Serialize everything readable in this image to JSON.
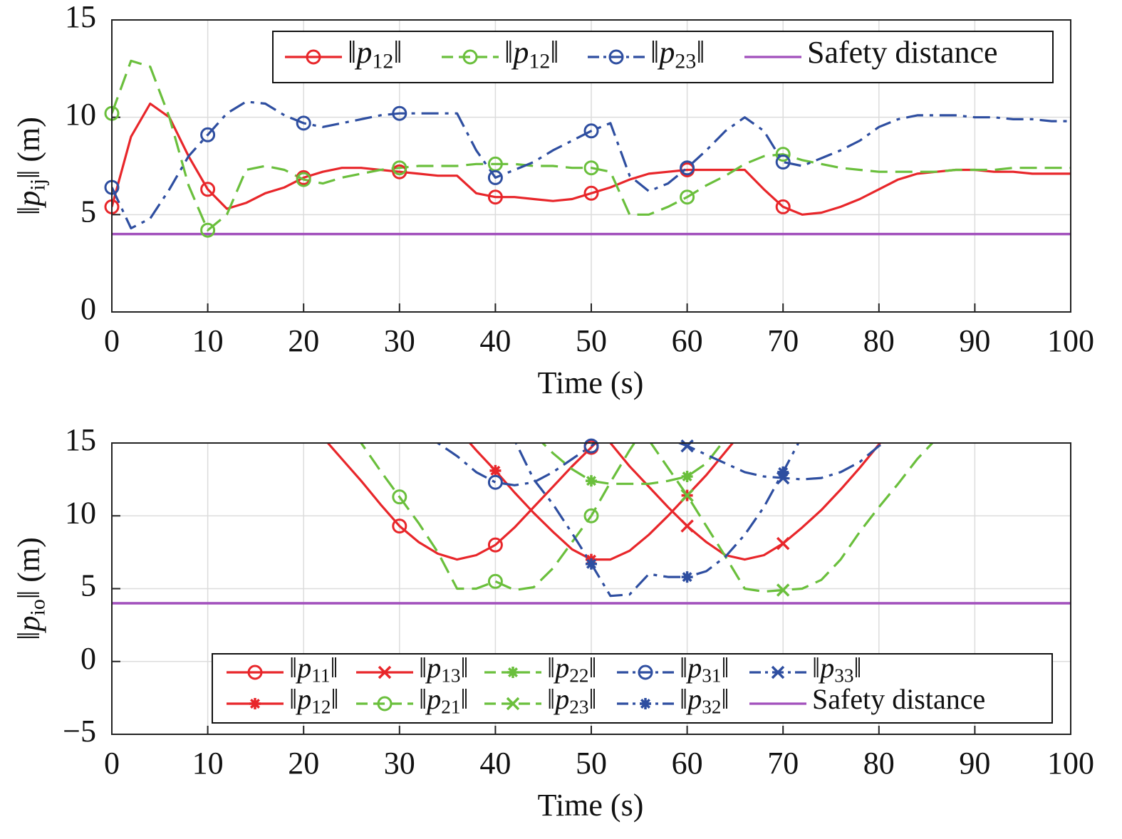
{
  "chart_data": [
    {
      "type": "line",
      "xlabel": "Time (s)",
      "ylabel": "‖pij‖ (m)",
      "x": [
        0,
        2,
        4,
        6,
        8,
        10,
        12,
        14,
        16,
        18,
        20,
        22,
        24,
        26,
        28,
        30,
        32,
        34,
        36,
        38,
        40,
        42,
        44,
        46,
        48,
        50,
        52,
        54,
        56,
        58,
        60,
        62,
        64,
        66,
        68,
        70,
        72,
        74,
        76,
        78,
        80,
        82,
        84,
        86,
        88,
        90,
        92,
        94,
        96,
        98,
        100
      ],
      "xlim": [
        0,
        100
      ],
      "xticks": [
        0,
        10,
        20,
        30,
        40,
        50,
        60,
        70,
        80,
        90,
        100
      ],
      "ylim": [
        0,
        15
      ],
      "yticks": [
        0,
        5,
        10,
        15
      ],
      "grid": true,
      "legend": "upper right",
      "markers_at": [
        0,
        10,
        20,
        30,
        40,
        50,
        60,
        70
      ],
      "series": [
        {
          "name": "‖p12‖",
          "color": "#e8262a",
          "dash": "solid",
          "marker": "o",
          "values": [
            5.4,
            9.0,
            10.7,
            10.0,
            8.0,
            6.3,
            5.3,
            5.6,
            6.1,
            6.4,
            6.9,
            7.2,
            7.4,
            7.4,
            7.3,
            7.2,
            7.1,
            7.0,
            7.0,
            6.1,
            5.9,
            5.9,
            5.8,
            5.7,
            5.8,
            6.1,
            6.4,
            6.8,
            7.1,
            7.2,
            7.3,
            7.3,
            7.3,
            7.3,
            6.3,
            5.4,
            5.0,
            5.1,
            5.4,
            5.8,
            6.3,
            6.8,
            7.1,
            7.2,
            7.3,
            7.3,
            7.2,
            7.2,
            7.1,
            7.1,
            7.1
          ]
        },
        {
          "name": "‖p12‖",
          "color": "#6abf3c",
          "dash": "dash",
          "marker": "o",
          "values": [
            10.2,
            12.9,
            12.6,
            10.0,
            6.5,
            4.2,
            5.0,
            7.3,
            7.5,
            7.3,
            6.8,
            6.6,
            6.9,
            7.1,
            7.3,
            7.4,
            7.5,
            7.5,
            7.5,
            7.6,
            7.6,
            7.6,
            7.5,
            7.5,
            7.4,
            7.4,
            7.2,
            5.0,
            5.0,
            5.4,
            5.9,
            6.5,
            7.0,
            7.6,
            8.0,
            8.1,
            7.8,
            7.6,
            7.4,
            7.3,
            7.2,
            7.2,
            7.2,
            7.2,
            7.3,
            7.3,
            7.3,
            7.4,
            7.4,
            7.4,
            7.4
          ]
        },
        {
          "name": "‖p23‖",
          "color": "#2e4ea0",
          "dash": "dashdot",
          "marker": "o",
          "values": [
            6.4,
            4.3,
            4.8,
            6.3,
            8.0,
            9.1,
            10.2,
            10.8,
            10.7,
            10.1,
            9.7,
            9.5,
            9.7,
            9.9,
            10.1,
            10.2,
            10.2,
            10.2,
            10.2,
            8.3,
            6.9,
            7.3,
            7.7,
            8.3,
            8.8,
            9.3,
            9.7,
            7.0,
            6.2,
            6.6,
            7.4,
            8.3,
            9.3,
            10.0,
            9.3,
            7.7,
            7.5,
            7.9,
            8.3,
            8.8,
            9.5,
            9.9,
            10.1,
            10.1,
            10.1,
            10.0,
            10.0,
            9.9,
            9.9,
            9.8,
            9.8
          ]
        }
      ],
      "hline": {
        "name": "Safety distance",
        "value": 4,
        "color": "#a14fbc"
      }
    },
    {
      "type": "line",
      "xlabel": "Time (s)",
      "ylabel": "‖pio‖ (m)",
      "x": [
        20,
        22,
        24,
        26,
        28,
        30,
        32,
        34,
        36,
        38,
        40,
        42,
        44,
        46,
        48,
        50,
        52,
        54,
        56,
        58,
        60,
        62,
        64,
        66,
        68,
        70,
        72,
        74,
        76,
        78,
        80,
        82,
        84,
        86,
        88,
        90
      ],
      "xlim": [
        0,
        100
      ],
      "xticks": [
        0,
        10,
        20,
        30,
        40,
        50,
        60,
        70,
        80,
        90,
        100
      ],
      "ylim": [
        -5,
        15
      ],
      "yticks": [
        {
          "value": -5,
          "label": "−5"
        },
        0,
        5,
        10,
        15
      ],
      "grid": true,
      "legend": "lower center",
      "markers_at": [
        30,
        40,
        50,
        60,
        70
      ],
      "series": [
        {
          "name": "‖p11‖",
          "color": "#e8262a",
          "dash": "solid",
          "marker": "o",
          "values": [
            17.0,
            15.4,
            13.9,
            12.4,
            10.8,
            9.3,
            8.2,
            7.4,
            7.0,
            7.3,
            8.0,
            9.2,
            10.6,
            12.0,
            13.4,
            14.7,
            16.0,
            null,
            null,
            null,
            null,
            null,
            null,
            null,
            null,
            null,
            null,
            null,
            null,
            null,
            null,
            null,
            null,
            null,
            null,
            null
          ]
        },
        {
          "name": "‖p12‖",
          "color": "#e8262a",
          "dash": "solid",
          "marker": "*",
          "values": [
            null,
            null,
            null,
            null,
            null,
            null,
            null,
            null,
            16.0,
            14.5,
            13.1,
            11.6,
            10.2,
            8.9,
            7.7,
            7.0,
            7.0,
            7.6,
            8.7,
            10.0,
            11.4,
            12.8,
            14.4,
            16.0,
            null,
            null,
            null,
            null,
            null,
            null,
            null,
            null,
            null,
            null,
            null,
            null
          ]
        },
        {
          "name": "‖p13‖",
          "color": "#e8262a",
          "dash": "solid",
          "marker": "x",
          "values": [
            null,
            null,
            null,
            null,
            null,
            null,
            null,
            null,
            null,
            null,
            null,
            null,
            null,
            null,
            null,
            16.4,
            15.0,
            13.4,
            12.0,
            10.6,
            9.3,
            8.2,
            7.3,
            7.0,
            7.3,
            8.1,
            9.2,
            10.4,
            11.8,
            13.3,
            14.9,
            16.3,
            null,
            null,
            null,
            null
          ]
        },
        {
          "name": "‖p21‖",
          "color": "#6abf3c",
          "dash": "dash",
          "marker": "o",
          "values": [
            null,
            null,
            17.0,
            15.0,
            13.1,
            11.3,
            9.5,
            7.5,
            5.0,
            5.0,
            5.5,
            4.9,
            5.1,
            6.4,
            8.2,
            10.0,
            12.3,
            14.5,
            16.5,
            null,
            null,
            null,
            null,
            null,
            null,
            null,
            null,
            null,
            null,
            null,
            null,
            null,
            null,
            null,
            null,
            null
          ]
        },
        {
          "name": "‖p22‖",
          "color": "#6abf3c",
          "dash": "dash",
          "marker": "*",
          "values": [
            null,
            null,
            null,
            null,
            null,
            null,
            null,
            null,
            null,
            null,
            null,
            null,
            15.6,
            14.3,
            13.2,
            12.4,
            12.2,
            12.2,
            12.2,
            12.4,
            12.7,
            13.6,
            15.3,
            null,
            null,
            null,
            null,
            null,
            null,
            null,
            null,
            null,
            null,
            null,
            null,
            null
          ]
        },
        {
          "name": "‖p23‖",
          "color": "#6abf3c",
          "dash": "dash",
          "marker": "x",
          "values": [
            null,
            null,
            null,
            null,
            null,
            null,
            null,
            null,
            null,
            null,
            null,
            null,
            null,
            null,
            null,
            null,
            null,
            null,
            15.2,
            13.3,
            11.4,
            9.3,
            7.2,
            5.0,
            4.8,
            4.9,
            5.0,
            5.6,
            7.0,
            8.9,
            10.6,
            12.2,
            13.9,
            15.3,
            null,
            null
          ]
        },
        {
          "name": "‖p31‖",
          "color": "#2e4ea0",
          "dash": "dashdot",
          "marker": "o",
          "values": [
            null,
            null,
            null,
            null,
            null,
            null,
            16.0,
            15.0,
            14.1,
            13.0,
            12.3,
            12.1,
            12.3,
            13.0,
            13.9,
            14.8,
            15.8,
            null,
            null,
            null,
            null,
            null,
            null,
            null,
            null,
            null,
            null,
            null,
            null,
            null,
            null,
            null,
            null,
            null,
            null,
            null
          ]
        },
        {
          "name": "‖p32‖",
          "color": "#2e4ea0",
          "dash": "dashdot",
          "marker": "*",
          "values": [
            null,
            null,
            null,
            null,
            null,
            null,
            null,
            null,
            null,
            null,
            16.0,
            15.2,
            12.5,
            10.8,
            8.8,
            6.7,
            4.5,
            4.6,
            6.0,
            5.8,
            5.8,
            6.2,
            7.2,
            8.7,
            10.6,
            13.0,
            15.5,
            null,
            null,
            null,
            null,
            null,
            null,
            null,
            null,
            null
          ]
        },
        {
          "name": "‖p33‖",
          "color": "#2e4ea0",
          "dash": "dashdot",
          "marker": "x",
          "values": [
            null,
            null,
            null,
            null,
            null,
            null,
            null,
            null,
            null,
            null,
            null,
            null,
            null,
            null,
            null,
            null,
            null,
            null,
            16.0,
            15.3,
            14.8,
            14.2,
            13.6,
            13.0,
            12.7,
            12.6,
            12.5,
            12.6,
            13.0,
            13.7,
            14.8,
            15.6,
            null,
            null,
            null,
            null
          ]
        }
      ],
      "hline": {
        "name": "Safety distance",
        "value": 4,
        "color": "#a14fbc"
      }
    }
  ]
}
